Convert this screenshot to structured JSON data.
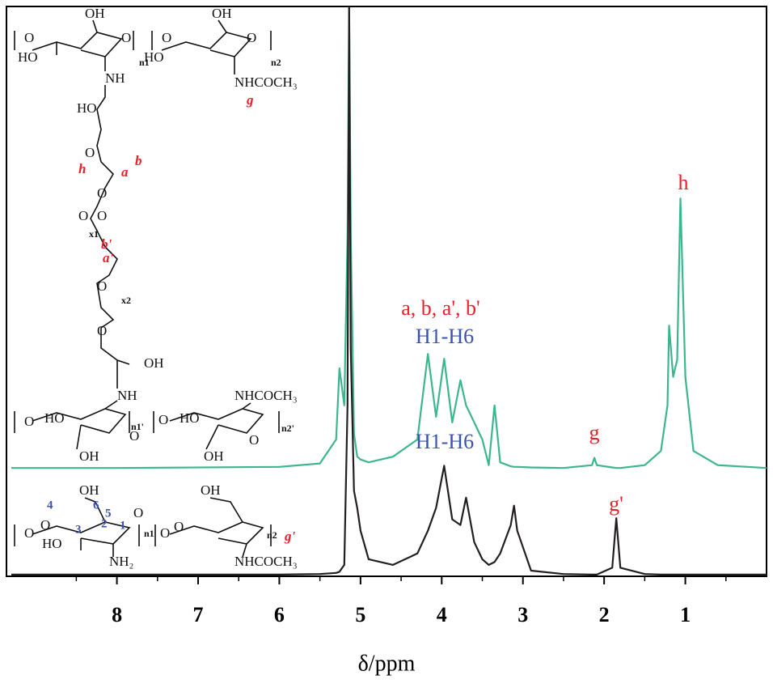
{
  "chart_data": {
    "type": "line",
    "x_label": "δ/ppm",
    "x": [
      9.3,
      8.0,
      6.0,
      5.5,
      5.3,
      5.26,
      5.2,
      5.16,
      5.14,
      5.12,
      5.08,
      5.04,
      5.0,
      4.9,
      4.6,
      4.3,
      4.17,
      4.07,
      3.97,
      3.87,
      3.77,
      3.7,
      3.6,
      3.5,
      3.42,
      3.35,
      3.28,
      3.15,
      3.11,
      3.07,
      2.9,
      2.5,
      2.15,
      2.12,
      2.09,
      1.9,
      1.85,
      1.8,
      1.5,
      1.3,
      1.22,
      1.2,
      1.15,
      1.1,
      1.06,
      1.0,
      0.9,
      0.6,
      0.0
    ],
    "series": [
      {
        "color": "#3cb68f",
        "values": [
          19,
          19,
          19.2,
          19.8,
          24,
          36.5,
          30,
          60,
          100,
          60,
          25,
          21,
          20.5,
          20,
          21,
          24,
          39,
          28,
          38.2,
          27,
          34.4,
          30,
          27,
          24,
          19.5,
          30,
          20,
          19.3,
          19.2,
          19.2,
          19.1,
          19,
          19.5,
          20.8,
          19.5,
          19.1,
          19,
          19,
          19.5,
          22,
          30,
          44,
          35,
          38,
          66.3,
          35,
          22,
          19.5,
          19
        ]
      },
      {
        "color": "#231f20",
        "values": [
          0.3,
          0.3,
          0.3,
          0.4,
          0.6,
          0.8,
          2,
          30,
          100,
          40,
          15,
          12,
          8,
          3,
          2,
          4,
          8,
          12,
          19.4,
          10,
          9,
          13.8,
          6,
          3,
          2,
          2.5,
          4,
          9,
          12.4,
          8,
          1,
          0.4,
          0.3,
          0.3,
          0.3,
          1.5,
          10.2,
          1.5,
          0.4,
          0.3,
          0.3,
          0.3,
          0.3,
          0.3,
          0.3,
          0.3,
          0.3,
          0.3,
          0.3
        ]
      }
    ],
    "xlim": [
      9.36,
      0
    ],
    "ylim": [
      0,
      100
    ],
    "xticks": [
      8,
      7,
      6,
      5,
      4,
      3,
      2,
      1
    ],
    "xminorticks": [
      8.5,
      7.5,
      6.5,
      5.5,
      4.5,
      3.5,
      2.5,
      1.5,
      0.5
    ],
    "annotations": [
      "a, b, a', b'",
      "H1-H6",
      "H1-H6",
      "g",
      "h",
      "g'"
    ],
    "structure_labels": [
      "OH",
      "OH",
      "O",
      "O",
      "O",
      "O",
      "HO",
      "HO",
      "n1",
      "n2",
      "NH",
      "NHCOCH₃",
      "g",
      "HO",
      "O",
      "b",
      "h",
      "a",
      "O",
      "O",
      "O",
      "x1",
      "b'",
      "a'",
      "O",
      "x2",
      "O",
      "OH",
      "NH",
      "NHCOCH₃",
      "HO",
      "O",
      "n1'",
      "O",
      "HO",
      "n2'",
      "O",
      "O",
      "OH",
      "OH",
      "OH",
      "OH",
      "4",
      "6",
      "5",
      "O",
      "2",
      "1",
      "3",
      "O",
      "HO",
      "n1",
      "O",
      "n2",
      "g'",
      "NH₂",
      "NHCOCH₃",
      "O",
      "O"
    ]
  }
}
